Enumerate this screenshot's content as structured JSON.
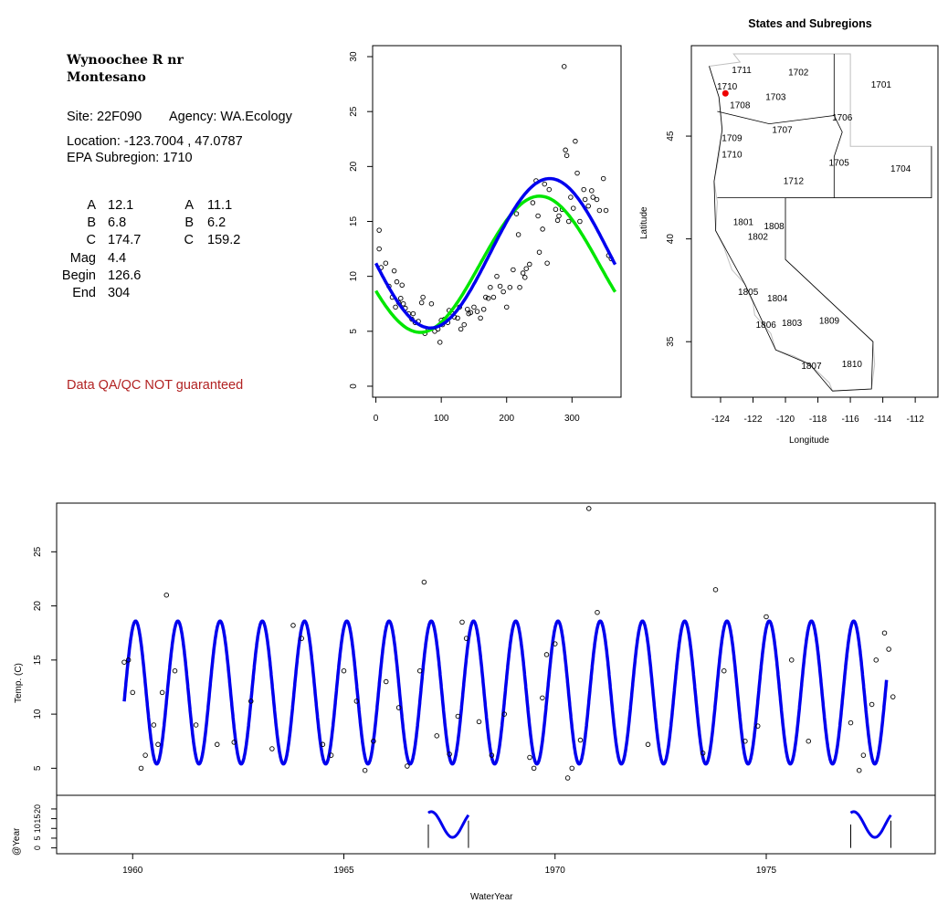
{
  "site_panel": {
    "title_line1": "Wynoochee R nr",
    "title_line2": "Montesano",
    "site": "Site: 22F090",
    "agency": "Agency: WA.Ecology",
    "location": "Location: -123.7004 , 47.0787",
    "subregion": "EPA Subregion: 1710",
    "params": [
      {
        "label": "A",
        "v1": "12.1",
        "label2": "A",
        "v2": "11.1"
      },
      {
        "label": "B",
        "v1": "6.8",
        "label2": "B",
        "v2": "6.2"
      },
      {
        "label": "C",
        "v1": "174.7",
        "label2": "C",
        "v2": "159.2"
      },
      {
        "label": "Mag",
        "v1": "4.4",
        "label2": "",
        "v2": ""
      },
      {
        "label": "Begin",
        "v1": "126.6",
        "label2": "",
        "v2": ""
      },
      {
        "label": "End",
        "v1": "304",
        "label2": "",
        "v2": ""
      }
    ],
    "qa_note": "Data QA/QC NOT guaranteed"
  },
  "colors": {
    "blue": "#0000ee",
    "green": "#00e600",
    "red": "#ee0000",
    "border": "#000000",
    "region_line": "#bfbfbf"
  },
  "chart_data": [
    {
      "type": "scatter",
      "name": "day-of-year",
      "x_ticks": [
        0,
        100,
        200,
        300
      ],
      "y_ticks": [
        0,
        5,
        10,
        15,
        20,
        25,
        30
      ],
      "xlim": [
        -5,
        375
      ],
      "ylim": [
        -1,
        31
      ],
      "points": [
        [
          5,
          14.2
        ],
        [
          5,
          12.5
        ],
        [
          8,
          10.8
        ],
        [
          15,
          11.2
        ],
        [
          20,
          9.1
        ],
        [
          25,
          8.1
        ],
        [
          28,
          10.5
        ],
        [
          30,
          7.2
        ],
        [
          32,
          9.5
        ],
        [
          35,
          7.6
        ],
        [
          38,
          8.0
        ],
        [
          40,
          9.2
        ],
        [
          42,
          7.5
        ],
        [
          45,
          7.1
        ],
        [
          50,
          6.6
        ],
        [
          55,
          6.1
        ],
        [
          57,
          6.6
        ],
        [
          60,
          5.8
        ],
        [
          65,
          5.9
        ],
        [
          70,
          7.6
        ],
        [
          72,
          8.1
        ],
        [
          75,
          4.8
        ],
        [
          80,
          5.2
        ],
        [
          85,
          7.5
        ],
        [
          90,
          5.0
        ],
        [
          95,
          5.2
        ],
        [
          98,
          4.0
        ],
        [
          100,
          6.0
        ],
        [
          102,
          5.6
        ],
        [
          105,
          6.1
        ],
        [
          110,
          5.8
        ],
        [
          112,
          6.9
        ],
        [
          118,
          6.6
        ],
        [
          120,
          6.3
        ],
        [
          125,
          6.2
        ],
        [
          128,
          7.2
        ],
        [
          130,
          5.2
        ],
        [
          135,
          5.6
        ],
        [
          140,
          7.0
        ],
        [
          142,
          6.6
        ],
        [
          145,
          6.7
        ],
        [
          150,
          7.2
        ],
        [
          155,
          6.8
        ],
        [
          160,
          6.2
        ],
        [
          165,
          7.0
        ],
        [
          168,
          8.1
        ],
        [
          172,
          8.0
        ],
        [
          175,
          9.0
        ],
        [
          180,
          8.1
        ],
        [
          185,
          10.0
        ],
        [
          190,
          9.1
        ],
        [
          195,
          8.6
        ],
        [
          200,
          7.2
        ],
        [
          205,
          9.0
        ],
        [
          210,
          10.6
        ],
        [
          215,
          15.7
        ],
        [
          218,
          13.8
        ],
        [
          220,
          9.0
        ],
        [
          225,
          10.3
        ],
        [
          228,
          9.9
        ],
        [
          230,
          10.7
        ],
        [
          235,
          11.1
        ],
        [
          240,
          16.7
        ],
        [
          245,
          18.7
        ],
        [
          248,
          15.5
        ],
        [
          250,
          12.2
        ],
        [
          255,
          14.3
        ],
        [
          258,
          18.4
        ],
        [
          262,
          11.2
        ],
        [
          265,
          17.9
        ],
        [
          275,
          16.1
        ],
        [
          278,
          15.1
        ],
        [
          280,
          15.5
        ],
        [
          285,
          16.1
        ],
        [
          288,
          29.1
        ],
        [
          290,
          21.5
        ],
        [
          292,
          21.0
        ],
        [
          295,
          15.0
        ],
        [
          298,
          17.2
        ],
        [
          302,
          16.2
        ],
        [
          305,
          22.3
        ],
        [
          308,
          19.4
        ],
        [
          312,
          15.0
        ],
        [
          318,
          17.9
        ],
        [
          320,
          17.0
        ],
        [
          325,
          16.4
        ],
        [
          330,
          17.8
        ],
        [
          332,
          17.2
        ],
        [
          338,
          17.0
        ],
        [
          342,
          16.0
        ],
        [
          348,
          18.9
        ],
        [
          352,
          16.0
        ],
        [
          356,
          11.9
        ],
        [
          360,
          11.6
        ]
      ],
      "fits": [
        {
          "color": "blue",
          "A": 12.1,
          "B": 6.8,
          "C": 174.7,
          "width": 3.5
        },
        {
          "color": "green",
          "A": 11.1,
          "B": 6.2,
          "C": 159.2,
          "width": 3.5
        }
      ]
    },
    {
      "type": "line",
      "name": "time-series",
      "xlabel": "WaterYear",
      "ylabel": "Temp. (C)",
      "x_ticks": [
        1960,
        1965,
        1970,
        1975
      ],
      "y_ticks": [
        5,
        10,
        15,
        20,
        25
      ],
      "xlim": [
        1958.2,
        1979.0
      ],
      "ylim": [
        2.5,
        29.5
      ],
      "start": 1959.8,
      "end": 1977.85,
      "A": 12.0,
      "B": 6.6,
      "phase": 0.82,
      "points": [
        [
          1959.8,
          14.8
        ],
        [
          1959.9,
          15.0
        ],
        [
          1960.0,
          12.0
        ],
        [
          1960.2,
          5.0
        ],
        [
          1960.3,
          6.2
        ],
        [
          1960.5,
          9.0
        ],
        [
          1960.6,
          7.2
        ],
        [
          1960.7,
          12.0
        ],
        [
          1960.8,
          21.0
        ],
        [
          1961.0,
          14.0
        ],
        [
          1961.5,
          9.0
        ],
        [
          1962.0,
          7.2
        ],
        [
          1962.4,
          7.4
        ],
        [
          1962.8,
          11.2
        ],
        [
          1963.3,
          6.8
        ],
        [
          1963.8,
          18.2
        ],
        [
          1964.0,
          17.0
        ],
        [
          1964.5,
          7.2
        ],
        [
          1964.7,
          6.2
        ],
        [
          1965.0,
          14.0
        ],
        [
          1965.3,
          11.2
        ],
        [
          1965.5,
          4.8
        ],
        [
          1965.7,
          7.5
        ],
        [
          1966.0,
          13.0
        ],
        [
          1966.3,
          10.6
        ],
        [
          1966.5,
          5.2
        ],
        [
          1966.8,
          14.0
        ],
        [
          1966.9,
          22.2
        ],
        [
          1967.2,
          8.0
        ],
        [
          1967.5,
          6.3
        ],
        [
          1967.7,
          9.8
        ],
        [
          1967.8,
          18.5
        ],
        [
          1967.9,
          17.0
        ],
        [
          1968.2,
          9.3
        ],
        [
          1968.5,
          6.2
        ],
        [
          1968.8,
          10.0
        ],
        [
          1969.4,
          6.0
        ],
        [
          1969.5,
          5.0
        ],
        [
          1969.7,
          11.5
        ],
        [
          1969.8,
          15.5
        ],
        [
          1970.0,
          16.5
        ],
        [
          1970.3,
          4.1
        ],
        [
          1970.4,
          5.0
        ],
        [
          1970.6,
          7.6
        ],
        [
          1970.8,
          29.0
        ],
        [
          1971.0,
          19.4
        ],
        [
          1972.2,
          7.2
        ],
        [
          1973.5,
          6.4
        ],
        [
          1973.8,
          21.5
        ],
        [
          1974.0,
          14.0
        ],
        [
          1974.5,
          7.5
        ],
        [
          1974.8,
          8.9
        ],
        [
          1975.0,
          19.0
        ],
        [
          1975.6,
          15.0
        ],
        [
          1976.0,
          7.5
        ],
        [
          1977.0,
          9.2
        ],
        [
          1977.2,
          4.8
        ],
        [
          1977.3,
          6.2
        ],
        [
          1977.5,
          10.9
        ],
        [
          1977.6,
          15.0
        ],
        [
          1977.8,
          17.5
        ],
        [
          1977.9,
          16.0
        ],
        [
          1978.0,
          11.6
        ]
      ],
      "segments": [
        {
          "from": 1967.0,
          "to": 1967.95
        },
        {
          "from": 1977.0,
          "to": 1977.95
        }
      ]
    },
    {
      "type": "line",
      "name": "year-strip",
      "ylabel": "@Year",
      "y_ticks": [
        0,
        5,
        10,
        15,
        20
      ]
    }
  ],
  "map": {
    "title": "States and Subregions",
    "xlabel": "Longitude",
    "ylabel": "Latitude",
    "x_ticks": [
      "-124",
      "-122",
      "-120",
      "-118",
      "-116",
      "-114",
      "-112"
    ],
    "y_ticks": [
      "35",
      "40",
      "45"
    ],
    "regions": [
      {
        "code": "1711",
        "lon": -122.7,
        "lat": 48.2
      },
      {
        "code": "1702",
        "lon": -119.2,
        "lat": 48.1
      },
      {
        "code": "1701",
        "lon": -114.1,
        "lat": 47.5
      },
      {
        "code": "1710",
        "lon": -123.6,
        "lat": 47.4
      },
      {
        "code": "1703",
        "lon": -120.6,
        "lat": 46.9
      },
      {
        "code": "1708",
        "lon": -122.8,
        "lat": 46.5
      },
      {
        "code": "1706",
        "lon": -116.5,
        "lat": 45.9
      },
      {
        "code": "1707",
        "lon": -120.2,
        "lat": 45.3
      },
      {
        "code": "1709",
        "lon": -123.3,
        "lat": 44.9
      },
      {
        "code": "1710",
        "lon": -123.3,
        "lat": 44.1
      },
      {
        "code": "1705",
        "lon": -116.7,
        "lat": 43.7
      },
      {
        "code": "1704",
        "lon": -112.9,
        "lat": 43.4
      },
      {
        "code": "1712",
        "lon": -119.5,
        "lat": 42.8
      },
      {
        "code": "1801",
        "lon": -122.6,
        "lat": 40.8
      },
      {
        "code": "1808",
        "lon": -120.7,
        "lat": 40.6
      },
      {
        "code": "1802",
        "lon": -121.7,
        "lat": 40.1
      },
      {
        "code": "1805",
        "lon": -122.3,
        "lat": 37.4
      },
      {
        "code": "1804",
        "lon": -120.5,
        "lat": 37.1
      },
      {
        "code": "1806",
        "lon": -121.2,
        "lat": 35.8
      },
      {
        "code": "1803",
        "lon": -119.6,
        "lat": 35.9
      },
      {
        "code": "1809",
        "lon": -117.3,
        "lat": 36.0
      },
      {
        "code": "1807",
        "lon": -118.4,
        "lat": 33.8
      },
      {
        "code": "1810",
        "lon": -115.9,
        "lat": 33.9
      }
    ],
    "site_marker": {
      "lon": -123.7,
      "lat": 47.08
    }
  }
}
